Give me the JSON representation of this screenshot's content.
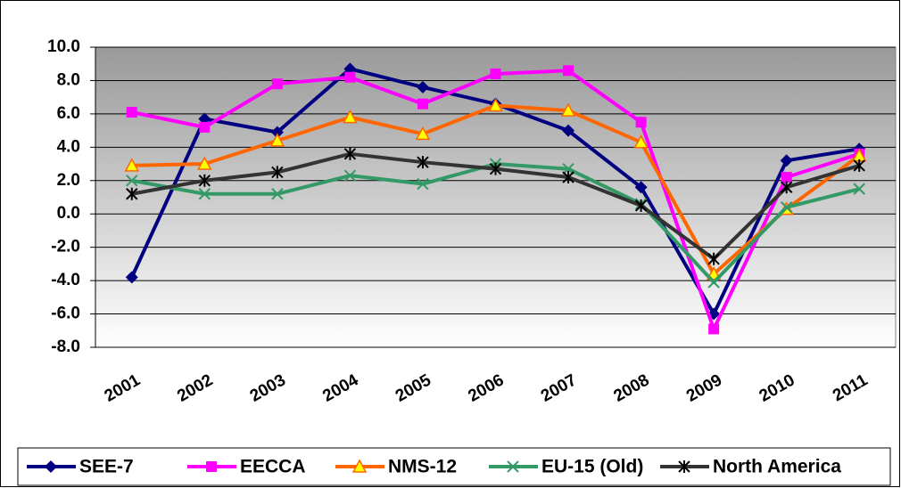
{
  "chart_data": {
    "type": "line",
    "categories": [
      "2001",
      "2002",
      "2003",
      "2004",
      "2005",
      "2006",
      "2007",
      "2008",
      "2009",
      "2010",
      "2011"
    ],
    "series": [
      {
        "name": "SEE-7",
        "color": "#000080",
        "marker": "diamond",
        "values": [
          -3.8,
          5.7,
          4.9,
          8.7,
          7.6,
          6.6,
          5.0,
          1.6,
          -6.0,
          3.2,
          3.9
        ]
      },
      {
        "name": "EECCA",
        "color": "#ff00ff",
        "marker": "square",
        "values": [
          6.1,
          5.2,
          7.8,
          8.2,
          6.6,
          8.4,
          8.6,
          5.5,
          -6.9,
          2.2,
          3.6
        ]
      },
      {
        "name": "NMS-12",
        "color": "#ff6600",
        "marker": "triangle",
        "values": [
          2.9,
          3.0,
          4.4,
          5.8,
          4.8,
          6.5,
          6.2,
          4.3,
          -3.6,
          0.3,
          3.5
        ]
      },
      {
        "name": "EU-15 (Old)",
        "color": "#339966",
        "marker": "x",
        "values": [
          2.0,
          1.2,
          1.2,
          2.3,
          1.8,
          3.0,
          2.7,
          0.6,
          -4.1,
          0.4,
          1.5
        ]
      },
      {
        "name": "North America",
        "color": "#333333",
        "marker": "asterisk",
        "values": [
          1.2,
          2.0,
          2.5,
          3.6,
          3.1,
          2.7,
          2.2,
          0.5,
          -2.7,
          1.6,
          2.9
        ]
      }
    ],
    "ylim": [
      -8,
      10
    ],
    "yticks": [
      {
        "value": -8,
        "label": "-8.0"
      },
      {
        "value": -6,
        "label": "-6.0"
      },
      {
        "value": -4,
        "label": "-4.0"
      },
      {
        "value": -2,
        "label": "-2.0"
      },
      {
        "value": 0,
        "label": "0.0"
      },
      {
        "value": 2,
        "label": "2.0"
      },
      {
        "value": 4,
        "label": "4.0"
      },
      {
        "value": 6,
        "label": "6.0"
      },
      {
        "value": 8,
        "label": "8.0"
      },
      {
        "value": 10,
        "label": "10.0"
      }
    ],
    "grid": true,
    "legend": "bottom"
  }
}
